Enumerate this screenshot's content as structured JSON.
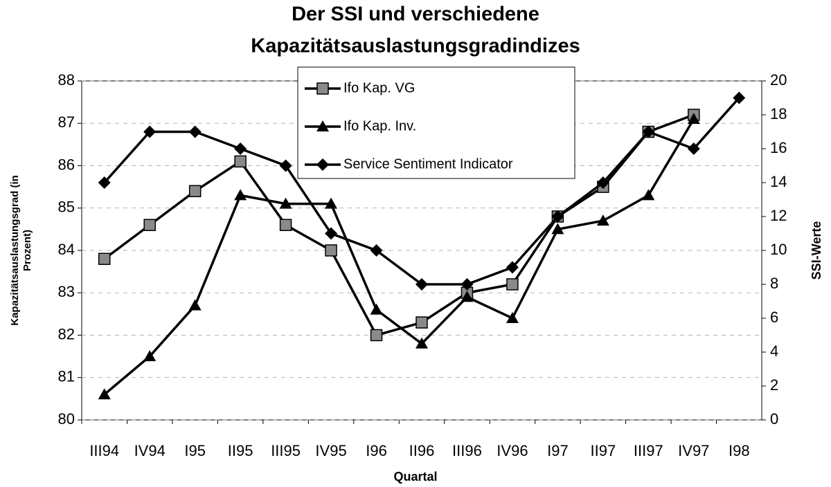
{
  "chart_data": {
    "type": "line",
    "title": [
      "Der SSI und verschiedene",
      "Kapazitätsauslastungsgradindizes"
    ],
    "x_label": "Quartal",
    "y_label": [
      "Kapazitätsauslastungsgrad (in",
      "Prozent)"
    ],
    "y2_label": "SSI-Werte",
    "categories": [
      "III94",
      "IV94",
      "I95",
      "II95",
      "III95",
      "IV95",
      "I96",
      "II96",
      "III96",
      "IV96",
      "I97",
      "II97",
      "III97",
      "IV97",
      "I98"
    ],
    "series": [
      {
        "name": "Ifo Kap. VG",
        "color": "#000000",
        "marker": "square",
        "values": [
          83.8,
          84.6,
          85.4,
          86.1,
          84.6,
          84.0,
          82.0,
          82.3,
          83.0,
          83.2,
          84.8,
          85.5,
          86.8,
          87.2,
          null
        ]
      },
      {
        "name": "Ifo Kap. Inv.",
        "color": "#000000",
        "marker": "triangle",
        "values": [
          80.6,
          81.5,
          82.7,
          85.3,
          85.1,
          85.1,
          82.6,
          81.8,
          82.9,
          82.4,
          84.5,
          84.7,
          85.3,
          87.1,
          null
        ]
      },
      {
        "name": "Service Sentiment Indicator",
        "color": "#000000",
        "marker": "diamond",
        "axis": "y2",
        "values": [
          14,
          17,
          17,
          16,
          15,
          11,
          10,
          8,
          8,
          9,
          12,
          14,
          17,
          16,
          19
        ]
      }
    ],
    "ylim": [
      80,
      88
    ],
    "yticks": [
      80,
      81,
      82,
      83,
      84,
      85,
      86,
      87,
      88
    ],
    "y2lim": [
      0,
      20
    ],
    "y2ticks": [
      0,
      2,
      4,
      6,
      8,
      10,
      12,
      14,
      16,
      18,
      20
    ],
    "grid": true,
    "legend": "top"
  }
}
